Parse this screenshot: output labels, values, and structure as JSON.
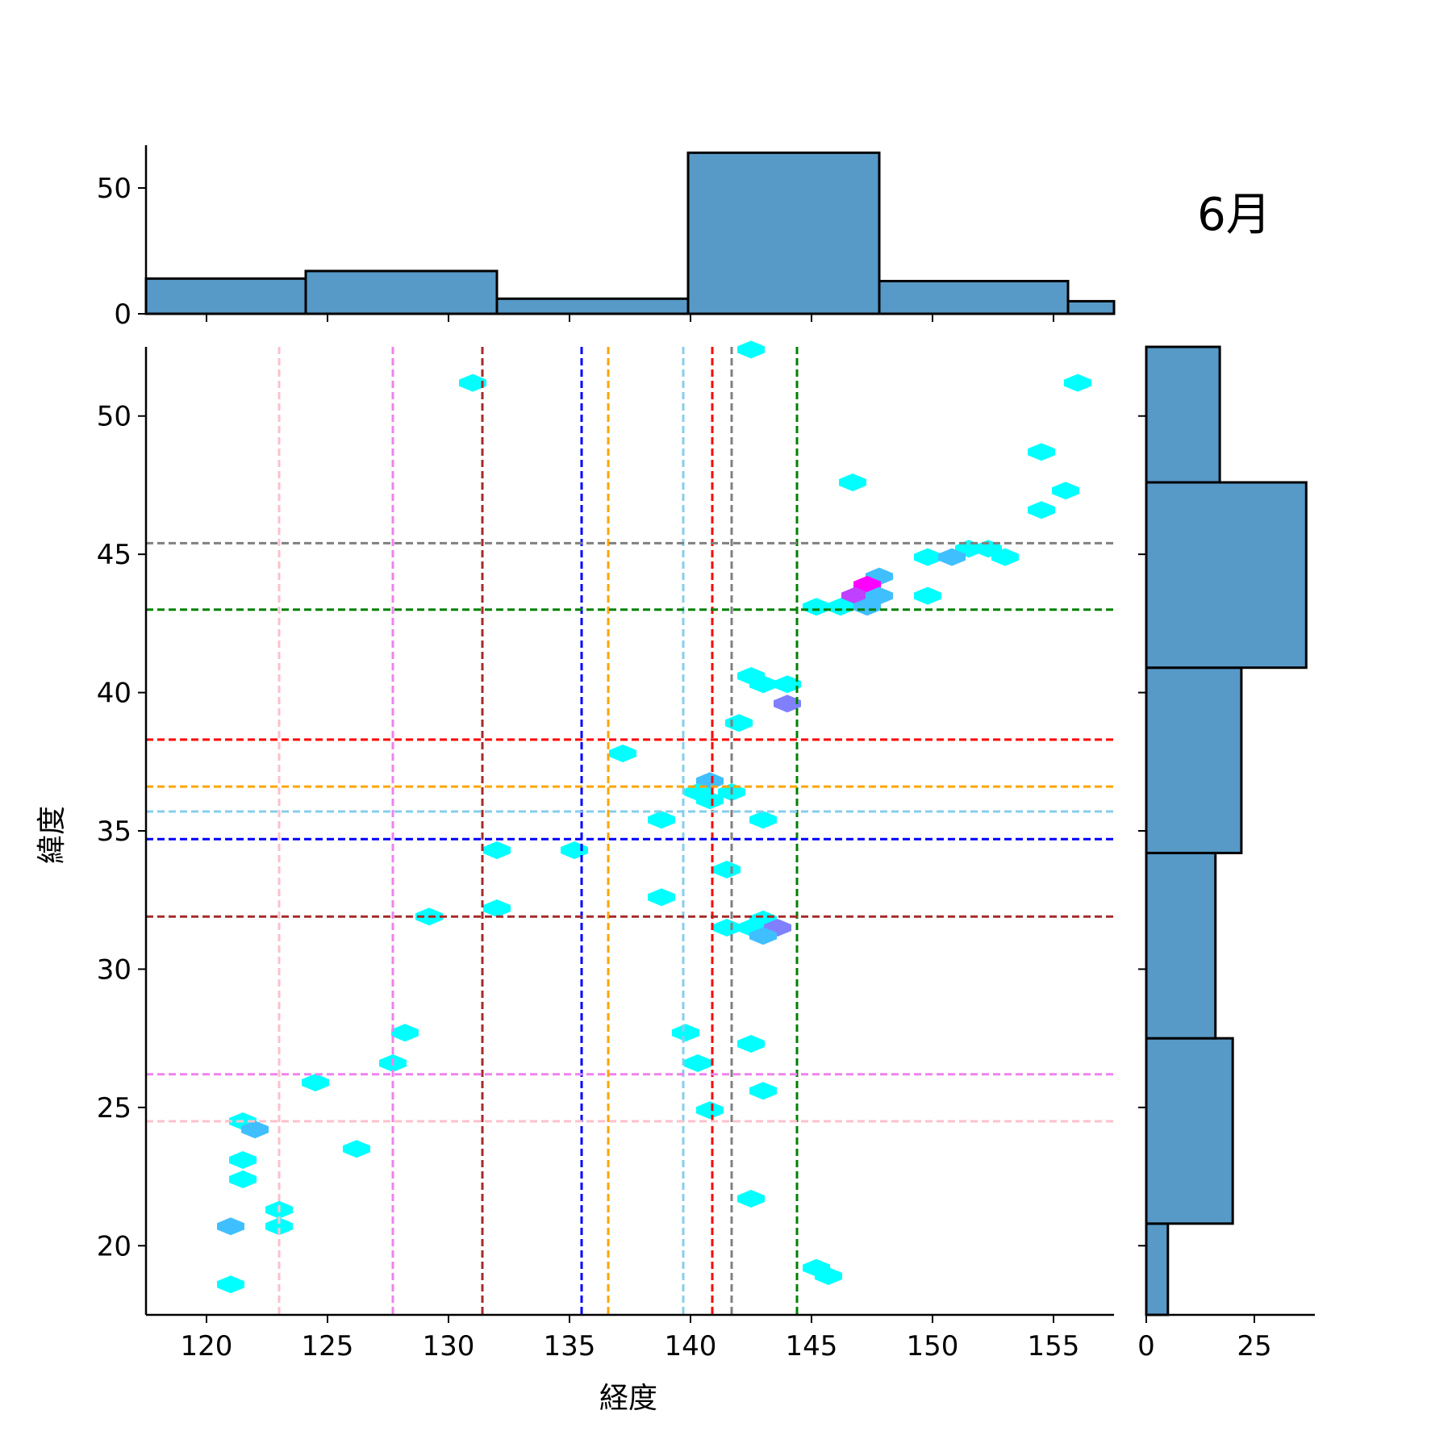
{
  "chart_data": {
    "type": "hexbin",
    "title": "6月",
    "xlabel": "経度",
    "ylabel": "緯度",
    "xlim": [
      117.5,
      157.5
    ],
    "ylim": [
      17.5,
      52.5
    ],
    "xticks": [
      120,
      125,
      130,
      135,
      140,
      145,
      150,
      155
    ],
    "yticks": [
      20,
      25,
      30,
      35,
      40,
      45,
      50
    ],
    "hexbins": [
      {
        "x": 131.0,
        "y": 51.2,
        "count": 1
      },
      {
        "x": 142.5,
        "y": 52.4,
        "count": 1
      },
      {
        "x": 156.0,
        "y": 51.2,
        "count": 1
      },
      {
        "x": 154.5,
        "y": 48.7,
        "count": 1
      },
      {
        "x": 146.7,
        "y": 47.6,
        "count": 1
      },
      {
        "x": 155.5,
        "y": 47.3,
        "count": 1
      },
      {
        "x": 154.5,
        "y": 46.6,
        "count": 1
      },
      {
        "x": 151.5,
        "y": 45.2,
        "count": 1
      },
      {
        "x": 152.3,
        "y": 45.2,
        "count": 1
      },
      {
        "x": 149.8,
        "y": 44.9,
        "count": 1
      },
      {
        "x": 150.8,
        "y": 44.9,
        "count": 2
      },
      {
        "x": 153.0,
        "y": 44.9,
        "count": 1
      },
      {
        "x": 147.8,
        "y": 44.2,
        "count": 2
      },
      {
        "x": 147.3,
        "y": 43.9,
        "count": 5
      },
      {
        "x": 146.8,
        "y": 43.5,
        "count": 4
      },
      {
        "x": 147.8,
        "y": 43.5,
        "count": 2
      },
      {
        "x": 149.8,
        "y": 43.5,
        "count": 1
      },
      {
        "x": 145.2,
        "y": 43.1,
        "count": 1
      },
      {
        "x": 146.2,
        "y": 43.1,
        "count": 1
      },
      {
        "x": 147.3,
        "y": 43.1,
        "count": 2
      },
      {
        "x": 142.5,
        "y": 40.6,
        "count": 1
      },
      {
        "x": 143.0,
        "y": 40.3,
        "count": 1
      },
      {
        "x": 144.0,
        "y": 40.3,
        "count": 1
      },
      {
        "x": 144.0,
        "y": 39.6,
        "count": 3
      },
      {
        "x": 142.0,
        "y": 38.9,
        "count": 1
      },
      {
        "x": 137.2,
        "y": 37.8,
        "count": 1
      },
      {
        "x": 140.8,
        "y": 36.8,
        "count": 2
      },
      {
        "x": 140.3,
        "y": 36.4,
        "count": 1
      },
      {
        "x": 141.7,
        "y": 36.4,
        "count": 1
      },
      {
        "x": 140.8,
        "y": 36.1,
        "count": 1
      },
      {
        "x": 138.8,
        "y": 35.4,
        "count": 1
      },
      {
        "x": 143.0,
        "y": 35.4,
        "count": 1
      },
      {
        "x": 132.0,
        "y": 34.3,
        "count": 1
      },
      {
        "x": 135.2,
        "y": 34.3,
        "count": 1
      },
      {
        "x": 141.5,
        "y": 33.6,
        "count": 1
      },
      {
        "x": 138.8,
        "y": 32.6,
        "count": 1
      },
      {
        "x": 132.0,
        "y": 32.2,
        "count": 1
      },
      {
        "x": 129.2,
        "y": 31.9,
        "count": 1
      },
      {
        "x": 143.0,
        "y": 31.8,
        "count": 1
      },
      {
        "x": 141.5,
        "y": 31.5,
        "count": 1
      },
      {
        "x": 142.5,
        "y": 31.5,
        "count": 1
      },
      {
        "x": 143.6,
        "y": 31.5,
        "count": 3
      },
      {
        "x": 143.0,
        "y": 31.2,
        "count": 2
      },
      {
        "x": 128.2,
        "y": 27.7,
        "count": 1
      },
      {
        "x": 139.8,
        "y": 27.7,
        "count": 1
      },
      {
        "x": 142.5,
        "y": 27.3,
        "count": 1
      },
      {
        "x": 127.7,
        "y": 26.6,
        "count": 1
      },
      {
        "x": 140.3,
        "y": 26.6,
        "count": 1
      },
      {
        "x": 124.5,
        "y": 25.9,
        "count": 1
      },
      {
        "x": 143.0,
        "y": 25.6,
        "count": 1
      },
      {
        "x": 140.8,
        "y": 24.9,
        "count": 1
      },
      {
        "x": 121.5,
        "y": 24.5,
        "count": 1
      },
      {
        "x": 122.0,
        "y": 24.2,
        "count": 2
      },
      {
        "x": 126.2,
        "y": 23.5,
        "count": 1
      },
      {
        "x": 121.5,
        "y": 23.1,
        "count": 1
      },
      {
        "x": 121.5,
        "y": 22.4,
        "count": 1
      },
      {
        "x": 142.5,
        "y": 21.7,
        "count": 1
      },
      {
        "x": 123.0,
        "y": 21.3,
        "count": 1
      },
      {
        "x": 121.0,
        "y": 20.7,
        "count": 2
      },
      {
        "x": 123.0,
        "y": 20.7,
        "count": 1
      },
      {
        "x": 145.2,
        "y": 19.2,
        "count": 1
      },
      {
        "x": 145.7,
        "y": 18.9,
        "count": 1
      },
      {
        "x": 121.0,
        "y": 18.6,
        "count": 1
      }
    ],
    "vlines": [
      {
        "x": 123.0,
        "color": "#ffc0cb"
      },
      {
        "x": 127.7,
        "color": "#ee82ee"
      },
      {
        "x": 131.4,
        "color": "#a52a2a"
      },
      {
        "x": 135.5,
        "color": "#0000ff"
      },
      {
        "x": 136.6,
        "color": "#ffa500"
      },
      {
        "x": 139.7,
        "color": "#87ceeb"
      },
      {
        "x": 140.9,
        "color": "#ff0000"
      },
      {
        "x": 141.7,
        "color": "#808080"
      },
      {
        "x": 144.4,
        "color": "#008000"
      }
    ],
    "hlines": [
      {
        "y": 45.4,
        "color": "#808080"
      },
      {
        "y": 43.0,
        "color": "#008000"
      },
      {
        "y": 38.3,
        "color": "#ff0000"
      },
      {
        "y": 36.6,
        "color": "#ffa500"
      },
      {
        "y": 35.7,
        "color": "#87ceeb"
      },
      {
        "y": 34.7,
        "color": "#0000ff"
      },
      {
        "y": 31.9,
        "color": "#a52a2a"
      },
      {
        "y": 26.2,
        "color": "#ee82ee"
      },
      {
        "y": 24.5,
        "color": "#ffc0cb"
      }
    ],
    "marginal_x": {
      "yticks": [
        0,
        50
      ],
      "ylim": [
        0,
        67
      ],
      "bins": [
        {
          "x0": 117.5,
          "x1": 124.1,
          "count": 14
        },
        {
          "x0": 124.1,
          "x1": 132.0,
          "count": 17
        },
        {
          "x0": 132.0,
          "x1": 139.9,
          "count": 6
        },
        {
          "x0": 139.9,
          "x1": 147.8,
          "count": 64
        },
        {
          "x0": 147.8,
          "x1": 155.6,
          "count": 13
        },
        {
          "x0": 155.6,
          "x1": 157.5,
          "count": 5
        }
      ]
    },
    "marginal_y": {
      "xticks": [
        0,
        25
      ],
      "xlim": [
        0,
        39
      ],
      "bins": [
        {
          "y0": 17.5,
          "y1": 20.8,
          "count": 5
        },
        {
          "y0": 20.8,
          "y1": 27.5,
          "count": 20
        },
        {
          "y0": 27.5,
          "y1": 34.2,
          "count": 16
        },
        {
          "y0": 34.2,
          "y1": 40.9,
          "count": 22
        },
        {
          "y0": 40.9,
          "y1": 47.6,
          "count": 37
        },
        {
          "y0": 47.6,
          "y1": 52.5,
          "count": 17
        }
      ]
    },
    "colors": {
      "bar_fill": "#5799c7",
      "bar_edge": "#000000",
      "hex_low": "#00ffff",
      "hex_high": "#ff00ff"
    }
  }
}
